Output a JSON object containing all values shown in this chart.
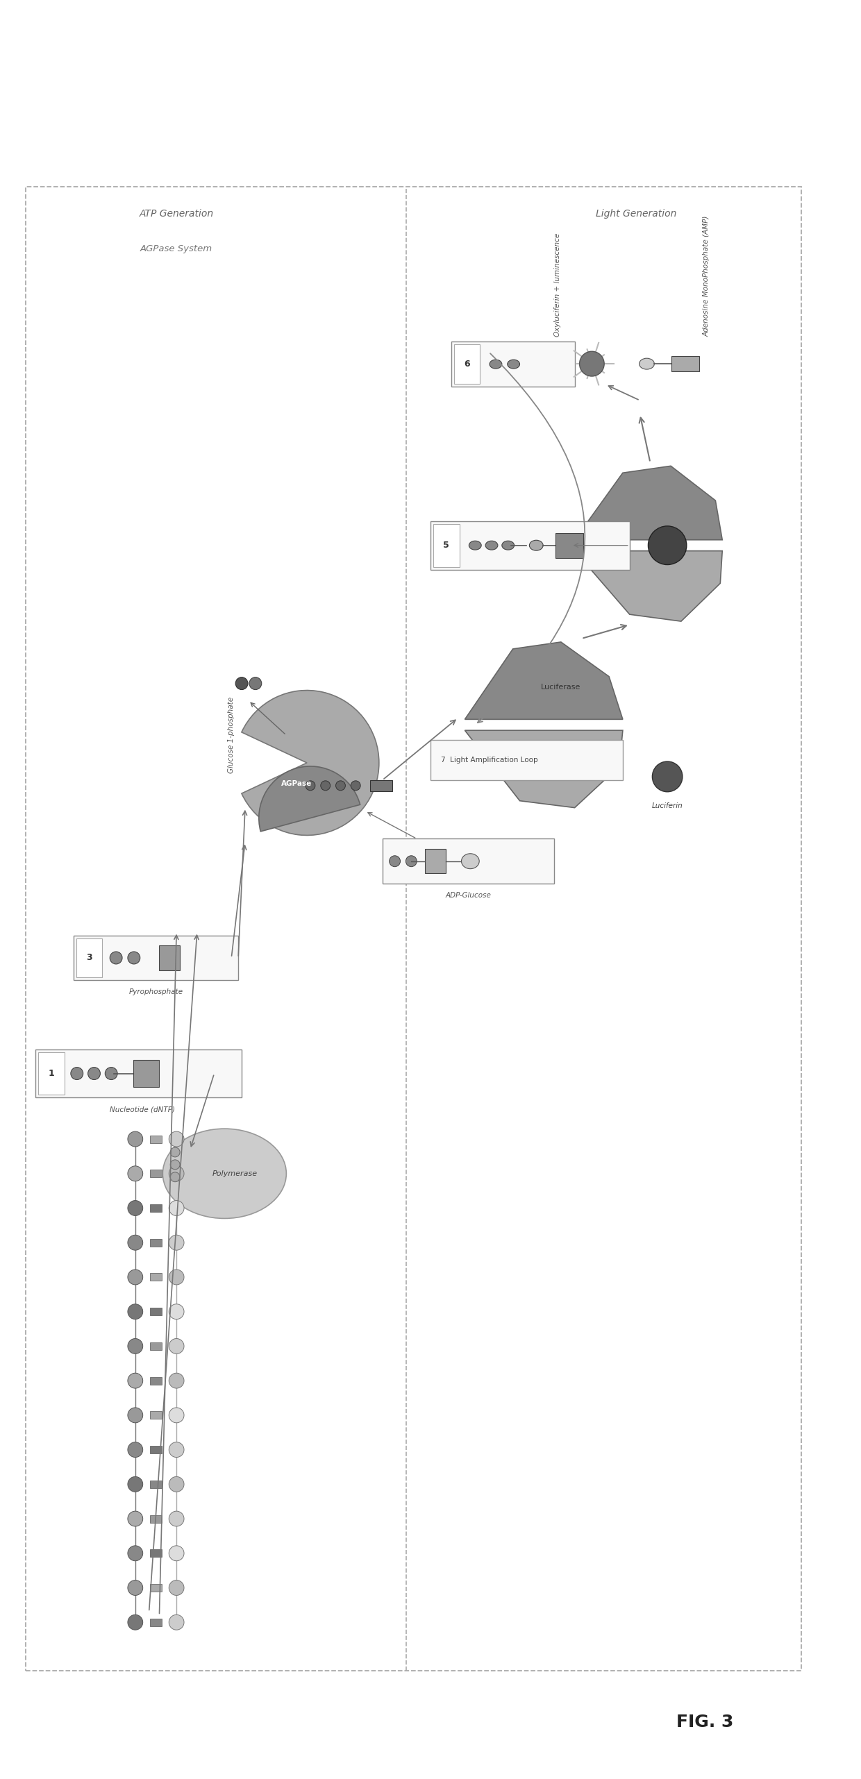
{
  "title": "FIG. 3",
  "bg_color": "#ffffff",
  "fig_width": 12.4,
  "fig_height": 25.63,
  "section_left_title1": "ATP Generation",
  "section_left_title2": "AGPase System",
  "section_right_title": "Light Generation",
  "label_polymerase": "Polymerase",
  "label_nucleotide": "Nucleotide (dNTP)",
  "label_pyrophosphate": "Pyrophosphate",
  "label_glucose1p": "Glucose 1-phosphate",
  "label_agpase": "AGPase",
  "label_adp_glucose": "ADP-Glucose",
  "label_luciferase": "Luciferase",
  "label_luciferin": "Luciferin",
  "label_oxyluciferin": "Oxyluciferin + luminescence",
  "label_amp": "Adenosine MonoPhosphate (AMP)",
  "label_light_loop": "7  Light Amplification Loop",
  "step1": "1",
  "step3": "3",
  "step5": "5",
  "step6": "6"
}
